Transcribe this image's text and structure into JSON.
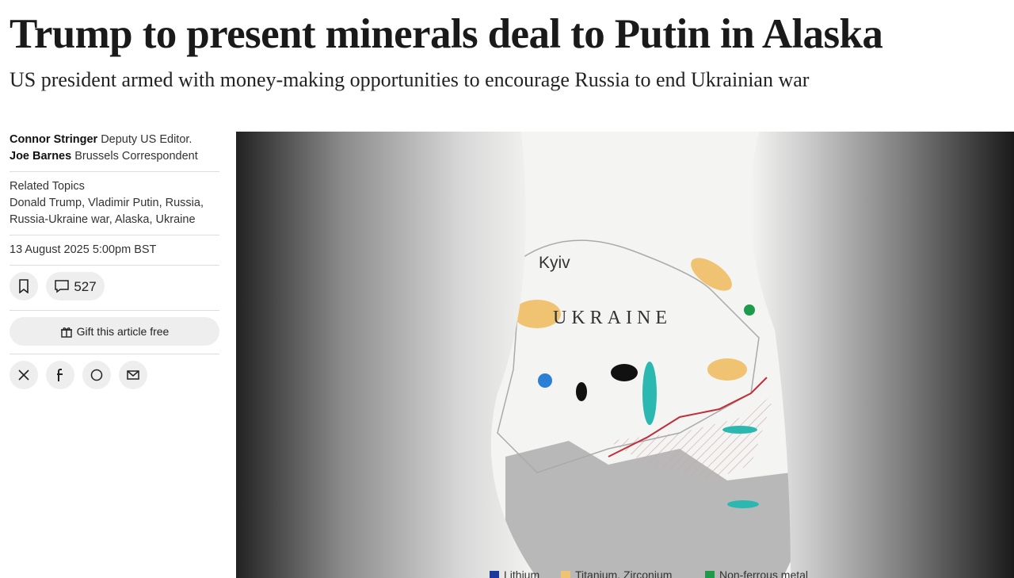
{
  "headline": "Trump to present minerals deal to Putin in Alaska",
  "standfirst": "US president armed with money-making opportunities to encourage Russia to end Ukrainian war",
  "byline": [
    {
      "name": "Connor Stringer",
      "role": "Deputy US Editor."
    },
    {
      "name": "Joe Barnes",
      "role": "Brussels Correspondent"
    }
  ],
  "related": {
    "label": "Related Topics",
    "topics": "Donald Trump, Vladimir Putin, Russia, Russia-Ukraine war, Alaska, Ukraine"
  },
  "date": "13 August 2025 5:00pm BST",
  "actions": {
    "comments": 527,
    "gift": "Gift this article free"
  },
  "image": {
    "labels": [
      "Kyiv",
      "UKRAINE"
    ],
    "legend": [
      "Lithium",
      "Titanium, Zirconium",
      "Non-ferrous metal"
    ]
  }
}
